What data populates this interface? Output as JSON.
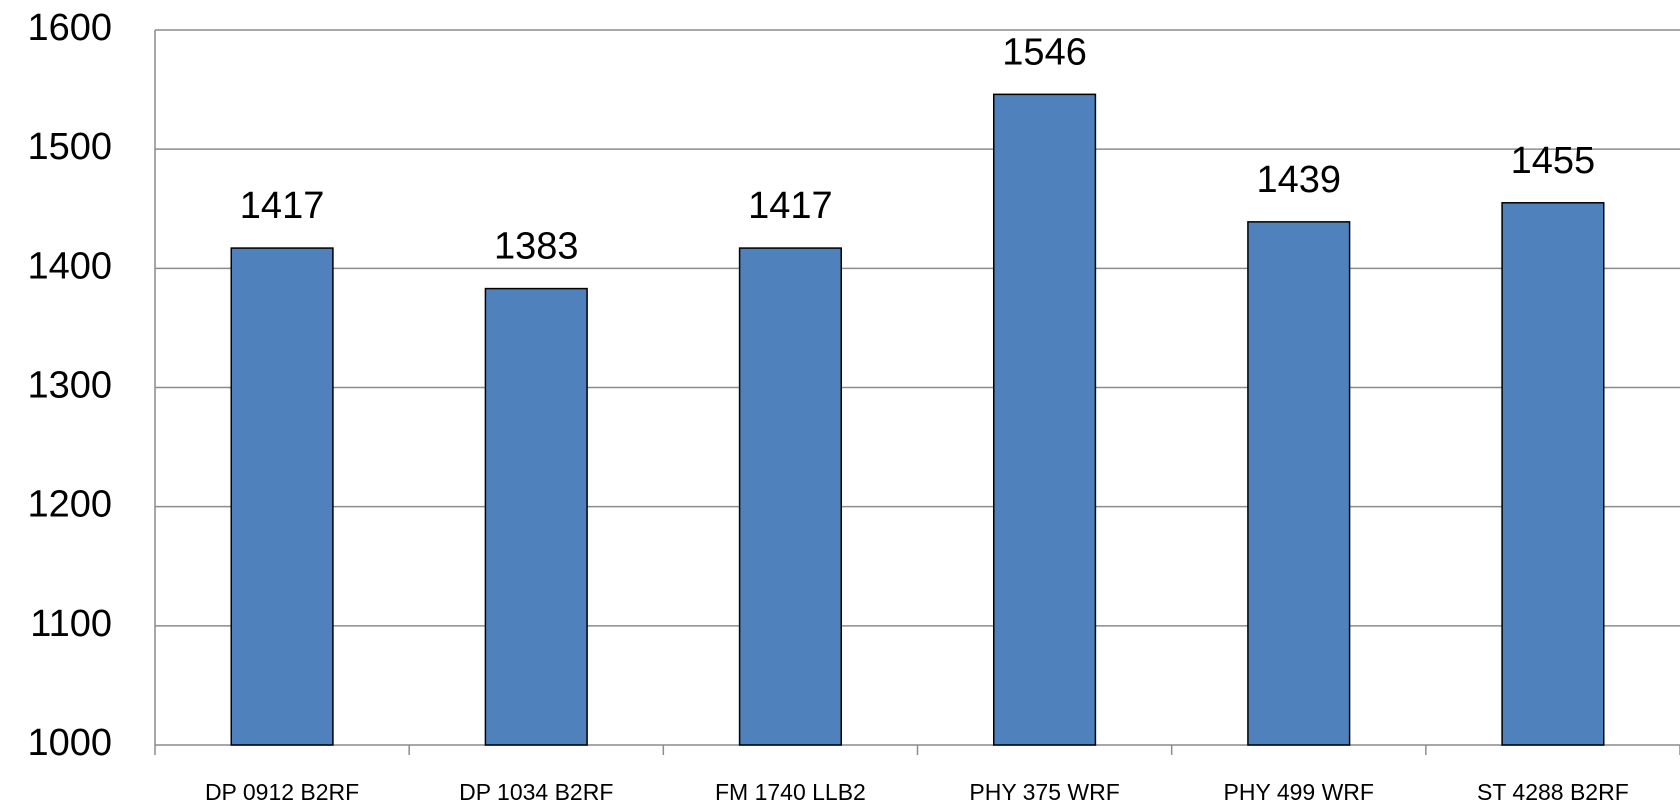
{
  "chart_data": {
    "type": "bar",
    "categories": [
      "DP 0912 B2RF",
      "DP 1034 B2RF",
      "FM 1740 LLB2",
      "PHY 375 WRF",
      "PHY 499 WRF",
      "ST 4288 B2RF"
    ],
    "values": [
      1417,
      1383,
      1417,
      1546,
      1439,
      1455
    ],
    "color": "#4f81bd",
    "ylim": [
      1000,
      1600
    ],
    "yticks": [
      1000,
      1100,
      1200,
      1300,
      1400,
      1500,
      1600
    ],
    "grid": true
  }
}
